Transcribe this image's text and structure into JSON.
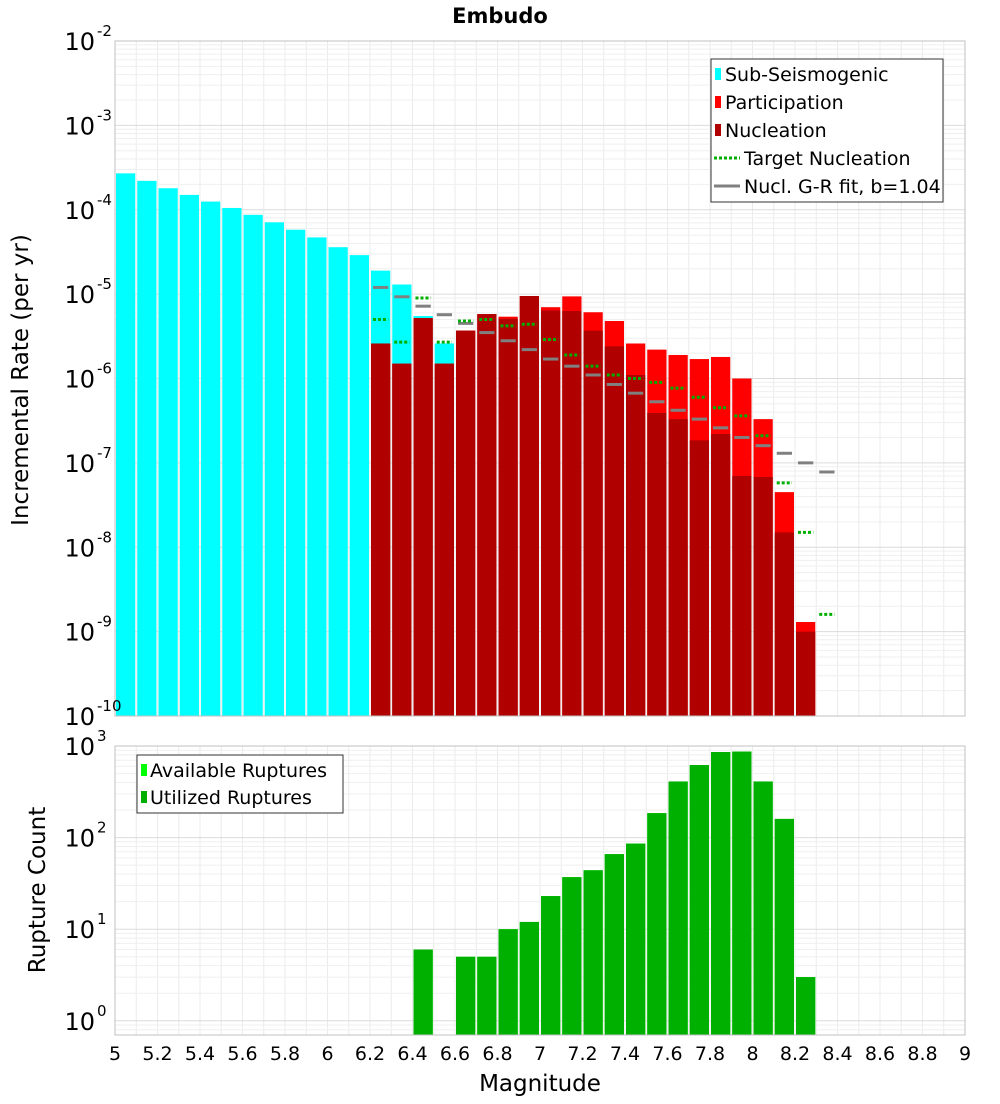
{
  "chart_data": [
    {
      "type": "bar",
      "title": "Embudo",
      "xlabel": "",
      "ylabel": "Incremental Rate (per yr)",
      "xlim": [
        5,
        9
      ],
      "ylim": [
        1e-10,
        0.01
      ],
      "yscale": "log",
      "grid": true,
      "legend_position": "top-right",
      "bin_width": 0.1,
      "y_tick_labels": [
        {
          "base": "10",
          "exp": "-10",
          "value": 1e-10
        },
        {
          "base": "10",
          "exp": "-9",
          "value": 1e-09
        },
        {
          "base": "10",
          "exp": "-8",
          "value": 1e-08
        },
        {
          "base": "10",
          "exp": "-7",
          "value": 1e-07
        },
        {
          "base": "10",
          "exp": "-6",
          "value": 1e-06
        },
        {
          "base": "10",
          "exp": "-5",
          "value": 1e-05
        },
        {
          "base": "10",
          "exp": "-4",
          "value": 0.0001
        },
        {
          "base": "10",
          "exp": "-3",
          "value": 0.001
        },
        {
          "base": "10",
          "exp": "-2",
          "value": 0.01
        }
      ],
      "series": [
        {
          "name": "Sub-Seismogenic",
          "color": "#00ffff",
          "style": "bar",
          "x": [
            5.05,
            5.15,
            5.25,
            5.35,
            5.45,
            5.55,
            5.65,
            5.75,
            5.85,
            5.95,
            6.05,
            6.15,
            6.25,
            6.35,
            6.45,
            6.55
          ],
          "values": [
            0.00027,
            0.00022,
            0.00018,
            0.00015,
            0.000125,
            0.000105,
            8.7e-05,
            7.1e-05,
            5.8e-05,
            4.7e-05,
            3.6e-05,
            2.9e-05,
            1.9e-05,
            1.3e-05,
            5.5e-06,
            2.6e-06
          ]
        },
        {
          "name": "Participation",
          "color": "#ff0000",
          "style": "bar",
          "x": [
            6.25,
            6.35,
            6.45,
            6.55,
            6.65,
            6.75,
            6.85,
            6.95,
            7.05,
            7.15,
            7.25,
            7.35,
            7.45,
            7.55,
            7.65,
            7.75,
            7.85,
            7.95,
            8.05,
            8.15,
            8.25,
            8.35
          ],
          "values": [
            2.6e-06,
            1.5e-06,
            5.2e-06,
            1.5e-06,
            3.7e-06,
            5.8e-06,
            5.4e-06,
            9.5e-06,
            7e-06,
            9.4e-06,
            6.1e-06,
            4.8e-06,
            2.6e-06,
            2.2e-06,
            1.9e-06,
            1.7e-06,
            1.8e-06,
            1e-06,
            3.3e-07,
            4.5e-08,
            1.3e-09,
            null
          ]
        },
        {
          "name": "Nucleation",
          "color": "#b00000",
          "style": "bar",
          "x": [
            6.25,
            6.35,
            6.45,
            6.55,
            6.65,
            6.75,
            6.85,
            6.95,
            7.05,
            7.15,
            7.25,
            7.35,
            7.45,
            7.55,
            7.65,
            7.75,
            7.85,
            7.95,
            8.05,
            8.15,
            8.25
          ],
          "values": [
            2.6e-06,
            1.5e-06,
            5.2e-06,
            1.5e-06,
            3.7e-06,
            5.8e-06,
            5.1e-06,
            9.5e-06,
            6.4e-06,
            6.3e-06,
            3.7e-06,
            2.4e-06,
            1.1e-06,
            3.9e-07,
            3.3e-07,
            1.85e-07,
            2.2e-07,
            7e-08,
            6.8e-08,
            1.5e-08,
            1e-09
          ]
        },
        {
          "name": "Target Nucleation",
          "color": "#00b000",
          "style": "dotted-step",
          "x": [
            6.25,
            6.35,
            6.45,
            6.55,
            6.65,
            6.75,
            6.85,
            6.95,
            7.05,
            7.15,
            7.25,
            7.35,
            7.45,
            7.55,
            7.65,
            7.75,
            7.85,
            7.95,
            8.05,
            8.15,
            8.25,
            8.35
          ],
          "values": [
            5e-06,
            2.7e-06,
            9e-06,
            2.7e-06,
            4.8e-06,
            5e-06,
            4.2e-06,
            4.4e-06,
            2.9e-06,
            1.9e-06,
            1.4e-06,
            1.1e-06,
            1e-06,
            9e-07,
            7.7e-07,
            6e-07,
            4.5e-07,
            3.6e-07,
            2.1e-07,
            5.8e-08,
            1.5e-08,
            1.6e-09
          ]
        },
        {
          "name": "Nucl. G-R fit, b=1.04",
          "color": "#808080",
          "style": "solid-step",
          "x": [
            6.25,
            6.35,
            6.45,
            6.55,
            6.65,
            6.75,
            6.85,
            6.95,
            7.05,
            7.15,
            7.25,
            7.35,
            7.45,
            7.55,
            7.65,
            7.75,
            7.85,
            7.95,
            8.05,
            8.15,
            8.25,
            8.35
          ],
          "values": [
            1.2e-05,
            9.3e-06,
            7.2e-06,
            5.7e-06,
            4.5e-06,
            3.5e-06,
            2.8e-06,
            2.2e-06,
            1.7e-06,
            1.4e-06,
            1.1e-06,
            8.5e-07,
            6.7e-07,
            5.3e-07,
            4.2e-07,
            3.3e-07,
            2.6e-07,
            2e-07,
            1.6e-07,
            1.3e-07,
            1e-07,
            7.8e-08
          ]
        }
      ]
    },
    {
      "type": "bar",
      "title": "",
      "xlabel": "Magnitude",
      "ylabel": "Rupture Count",
      "xlim": [
        5,
        9
      ],
      "ylim": [
        0.7,
        1000
      ],
      "yscale": "log",
      "grid": true,
      "legend_position": "top-left",
      "bin_width": 0.1,
      "x_tick_labels": [
        "5",
        "5.2",
        "5.4",
        "5.6",
        "5.8",
        "6",
        "6.2",
        "6.4",
        "6.6",
        "6.8",
        "7",
        "7.2",
        "7.4",
        "7.6",
        "7.8",
        "8",
        "8.2",
        "8.4",
        "8.6",
        "8.8",
        "9"
      ],
      "y_tick_labels": [
        {
          "base": "10",
          "exp": "0",
          "value": 1
        },
        {
          "base": "10",
          "exp": "1",
          "value": 10
        },
        {
          "base": "10",
          "exp": "2",
          "value": 100
        },
        {
          "base": "10",
          "exp": "3",
          "value": 1000
        }
      ],
      "series": [
        {
          "name": "Available Ruptures",
          "color": "#00ff00",
          "style": "bar",
          "x": [
            6.45,
            6.65,
            6.75,
            6.85,
            6.95,
            7.05,
            7.15,
            7.25,
            7.35,
            7.45,
            7.55,
            7.65,
            7.75,
            7.85,
            7.95,
            8.05,
            8.15,
            8.25
          ],
          "values": [
            6,
            5,
            5,
            10,
            12,
            23,
            37,
            44,
            66,
            86,
            185,
            410,
            620,
            860,
            870,
            410,
            160,
            3
          ]
        },
        {
          "name": "Utilized Ruptures",
          "color": "#00b000",
          "style": "bar",
          "x": [
            6.45,
            6.65,
            6.75,
            6.85,
            6.95,
            7.05,
            7.15,
            7.25,
            7.35,
            7.45,
            7.55,
            7.65,
            7.75,
            7.85,
            7.95,
            8.05,
            8.15,
            8.25
          ],
          "values": [
            6,
            5,
            5,
            10,
            12,
            23,
            37,
            44,
            66,
            86,
            185,
            410,
            620,
            860,
            870,
            410,
            160,
            3
          ]
        }
      ]
    }
  ]
}
